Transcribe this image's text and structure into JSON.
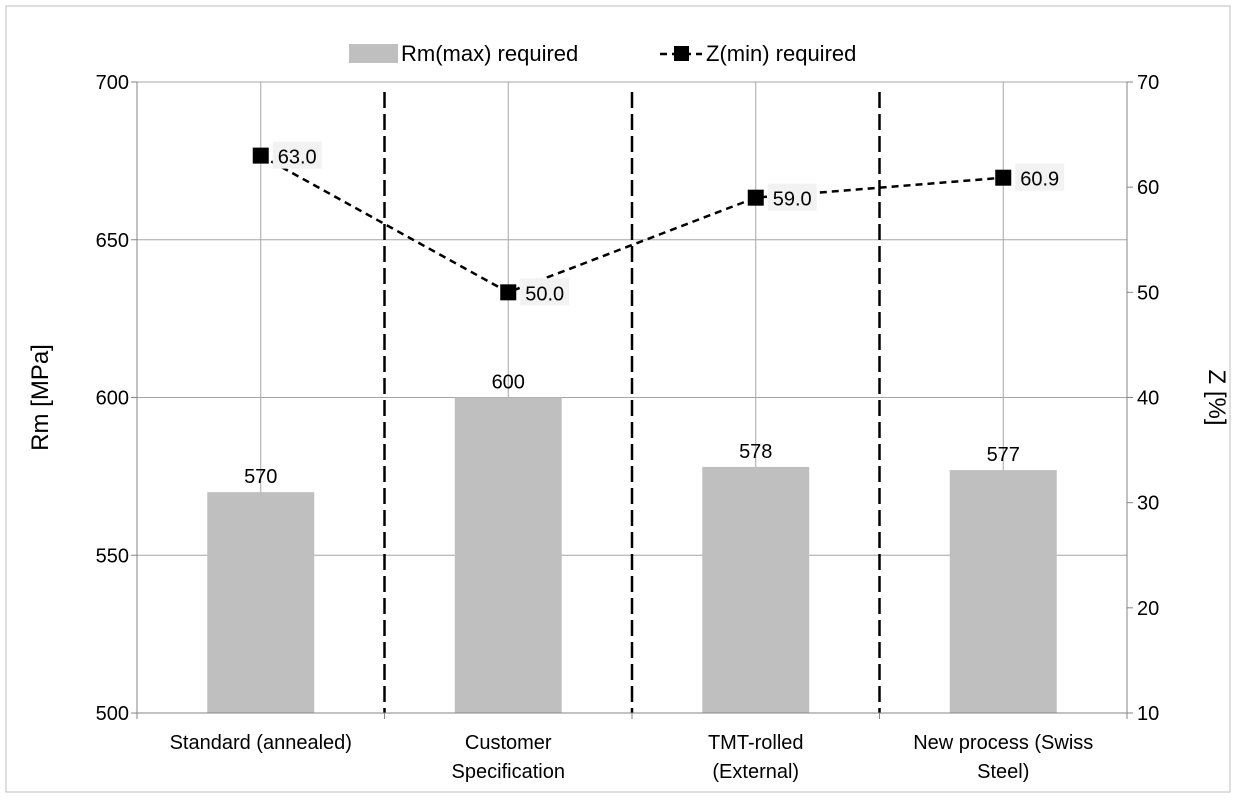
{
  "chart_data": {
    "type": "bar",
    "categories": [
      "Standard (annealed)",
      "Customer Specification",
      "TMT-rolled (External)",
      "New process (Swiss Steel)"
    ],
    "category_lines": [
      [
        "Standard (annealed)"
      ],
      [
        "Customer",
        "Specification"
      ],
      [
        "TMT-rolled",
        "(External)"
      ],
      [
        "New process (Swiss",
        "Steel)"
      ]
    ],
    "series": [
      {
        "name": "Rm(max) required",
        "type": "bar",
        "axis": "left",
        "values": [
          570,
          600,
          578,
          577
        ],
        "labels": [
          "570",
          "600",
          "578",
          "577"
        ],
        "color": "#bfbfbf"
      },
      {
        "name": "Z(min) required",
        "type": "line",
        "axis": "right",
        "values": [
          63.0,
          50.0,
          59.0,
          60.9
        ],
        "labels": [
          "63.0",
          "50.0",
          "59.0",
          "60.9"
        ],
        "color": "#000000",
        "dashed": true,
        "marker": "square"
      }
    ],
    "ylabel": "Rm [MPa]",
    "y2label": "Z [%]",
    "ylim": [
      500,
      700
    ],
    "y2lim": [
      10,
      70
    ],
    "yticks": [
      500,
      550,
      600,
      650,
      700
    ],
    "y2ticks": [
      10,
      20,
      30,
      40,
      50,
      60,
      70
    ],
    "grid": true,
    "legend_position": "top",
    "separators": "dashed vertical lines between categories"
  }
}
